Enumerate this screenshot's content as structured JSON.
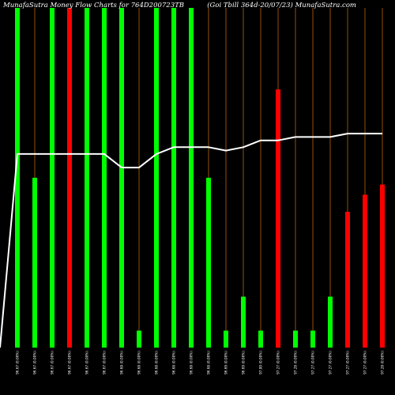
{
  "header": {
    "left": "MunafaSutra Money Flow Charts for 764D200723TB",
    "right": "(Goi   Tbill 364d-20/07/23) MunafaSutra.com"
  },
  "colors": {
    "background": "#000000",
    "up": "#00ff00",
    "down": "#ff0000",
    "grid": "#b8650a",
    "line": "#ffffff"
  },
  "chart_data": {
    "type": "bar",
    "categories": [
      "96.67 (0.00%)",
      "96.67 (0.00%)",
      "96.67 (0.00%)",
      "96.67 (0.00%)",
      "96.67 (0.00%)",
      "96.67 (0.00%)",
      "96.68 (0.00%)",
      "96.68 (0.00%)",
      "96.68 (0.00%)",
      "96.68 (0.00%)",
      "96.68 (0.00%)",
      "96.68 (0.00%)",
      "96.69 (0.00%)",
      "96.69 (0.00%)",
      "97.00 (0.00%)",
      "97.27 (0.00%)",
      "97.28 (0.00%)",
      "97.27 (0.00%)",
      "97.27 (0.00%)",
      "97.27 (0.00%)",
      "97.27 (0.00%)",
      "97.28 (0.00%)"
    ],
    "values": [
      100,
      50,
      100,
      100,
      100,
      100,
      100,
      5,
      100,
      100,
      100,
      50,
      5,
      15,
      5,
      76,
      5,
      5,
      15,
      40,
      45,
      48
    ],
    "colors": [
      "up",
      "up",
      "up",
      "down",
      "up",
      "up",
      "up",
      "up",
      "up",
      "up",
      "up",
      "up",
      "up",
      "up",
      "up",
      "down",
      "up",
      "up",
      "up",
      "down",
      "down",
      "down"
    ],
    "line": [
      57,
      57,
      57,
      57,
      57,
      57,
      53,
      53,
      57,
      59,
      59,
      59,
      58,
      59,
      61,
      61,
      62,
      62,
      62,
      63,
      63,
      63
    ],
    "ylim": [
      0,
      100
    ],
    "grid": true
  }
}
